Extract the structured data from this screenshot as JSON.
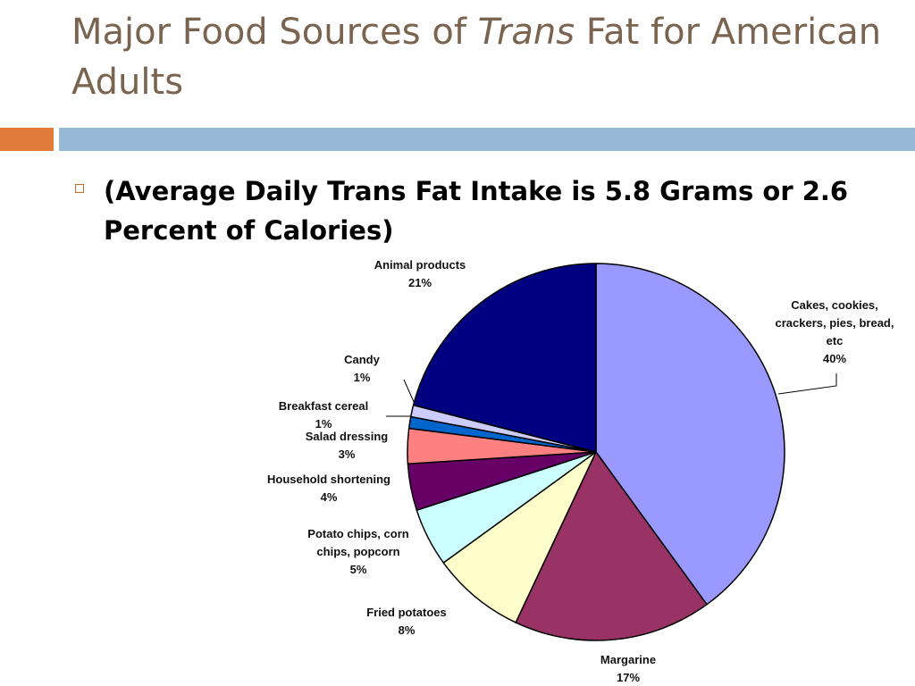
{
  "slide": {
    "title_part1": "Major Food Sources of ",
    "title_italic": "Trans",
    "title_part2": " Fat for American Adults",
    "bullet": "(Average Daily Trans Fat Intake is 5.8 Grams or 2.6 Percent of Calories)"
  },
  "colors": {
    "title": "#7a6450",
    "accent_orange": "#e07b3a",
    "accent_blue": "#97b8d6"
  },
  "chart_data": {
    "type": "pie",
    "title": "",
    "start_angle_deg": 0,
    "direction": "clockwise",
    "slices": [
      {
        "label": [
          "Cakes, cookies,",
          "crackers, pies, bread,",
          "etc"
        ],
        "value_label": "40%",
        "value": 40,
        "color": "#9999ff"
      },
      {
        "label": [
          "Margarine"
        ],
        "value_label": "17%",
        "value": 17,
        "color": "#993366"
      },
      {
        "label": [
          "Fried potatoes"
        ],
        "value_label": "8%",
        "value": 8,
        "color": "#ffffcc"
      },
      {
        "label": [
          "Potato chips, corn",
          "chips, popcorn"
        ],
        "value_label": "5%",
        "value": 5,
        "color": "#ccffff"
      },
      {
        "label": [
          "Household shortening"
        ],
        "value_label": "4%",
        "value": 4,
        "color": "#660066"
      },
      {
        "label": [
          "Salad dressing"
        ],
        "value_label": "3%",
        "value": 3,
        "color": "#ff8080"
      },
      {
        "label": [
          "Breakfast cereal"
        ],
        "value_label": "1%",
        "value": 1,
        "color": "#0066cc"
      },
      {
        "label": [
          "Candy"
        ],
        "value_label": "1%",
        "value": 1,
        "color": "#ccccff"
      },
      {
        "label": [
          "Animal products"
        ],
        "value_label": "21%",
        "value": 21,
        "color": "#000080"
      }
    ]
  }
}
